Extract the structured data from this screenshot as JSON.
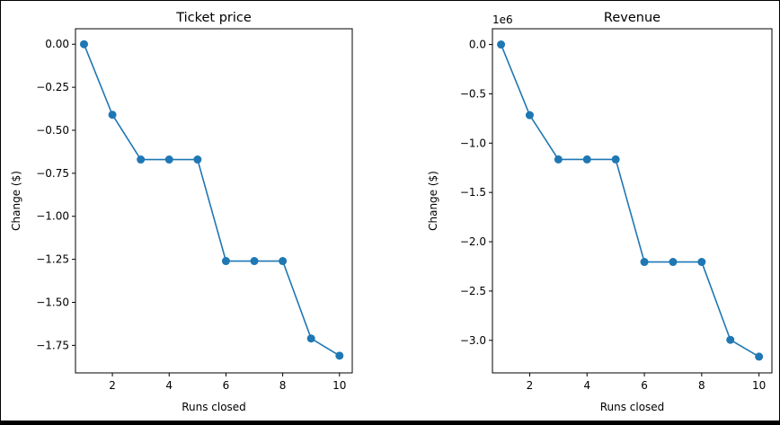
{
  "chart_data": [
    {
      "type": "line",
      "title": "Ticket price",
      "xlabel": "Runs closed",
      "ylabel": "Change ($)",
      "x": [
        1,
        2,
        3,
        4,
        5,
        6,
        7,
        8,
        9,
        10
      ],
      "series": [
        {
          "values": [
            0.0,
            -0.41,
            -0.67,
            -0.67,
            -0.67,
            -1.26,
            -1.26,
            -1.26,
            -1.71,
            -1.81
          ]
        }
      ],
      "xlim": [
        0.7,
        10.45
      ],
      "ylim": [
        -1.91,
        0.09
      ],
      "xticks": [
        "2",
        "4",
        "6",
        "8",
        "10"
      ],
      "yticks": [
        "0.00",
        "−0.25",
        "−0.50",
        "−0.75",
        "−1.00",
        "−1.25",
        "−1.50",
        "−1.75"
      ],
      "offset_label": "",
      "grid": false,
      "color": "#1f77b4"
    },
    {
      "type": "line",
      "title": "Revenue",
      "xlabel": "Runs closed",
      "ylabel": "Change ($)",
      "x": [
        1,
        2,
        3,
        4,
        5,
        6,
        7,
        8,
        9,
        10
      ],
      "series": [
        {
          "values": [
            0,
            -716000,
            -1165000,
            -1165000,
            -1165000,
            -2205000,
            -2205000,
            -2205000,
            -2995000,
            -3165000
          ]
        }
      ],
      "xlim": [
        0.7,
        10.45
      ],
      "ylim": [
        -3330000,
        160000
      ],
      "xticks": [
        "2",
        "4",
        "6",
        "8",
        "10"
      ],
      "yticks": [
        "0.0",
        "−0.5",
        "−1.0",
        "−1.5",
        "−2.0",
        "−2.5",
        "−3.0"
      ],
      "offset_label": "1e6",
      "grid": false,
      "color": "#1f77b4"
    }
  ]
}
